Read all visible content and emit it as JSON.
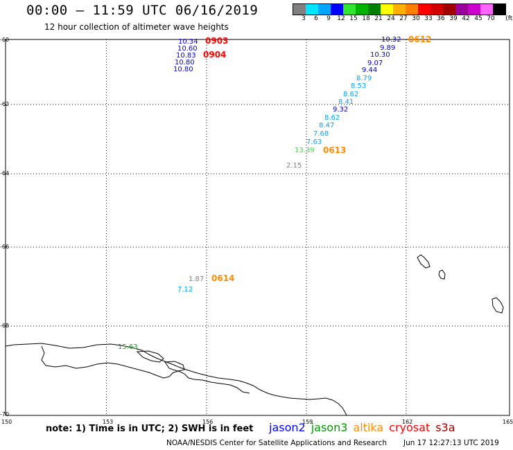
{
  "header": {
    "title": "00:00 – 11:59 UTC 06/16/2019",
    "subtitle": "12 hour collection of altimeter wave heights"
  },
  "legend": {
    "colors": [
      "#808080",
      "#00e5ff",
      "#00a6ff",
      "#0000ff",
      "#33e533",
      "#00b200",
      "#008000",
      "#ffff00",
      "#ffb000",
      "#ff7f00",
      "#ff0000",
      "#d20000",
      "#a00000",
      "#990099",
      "#cc00cc",
      "#ff66ff",
      "#000000"
    ],
    "labels": [
      "3",
      "6",
      "9",
      "12",
      "15",
      "18",
      "21",
      "24",
      "27",
      "30",
      "33",
      "36",
      "39",
      "42",
      "45",
      "70",
      "(ft)"
    ]
  },
  "axes": {
    "x_labels": [
      "150",
      "153",
      "156",
      "159",
      "162",
      "165"
    ],
    "y_labels": [
      "-60",
      "-62",
      "-64",
      "-66",
      "-68",
      "-70"
    ]
  },
  "passes": [
    {
      "label": "0903",
      "color": "#ff0000"
    },
    {
      "label": "0904",
      "color": "#ff0000"
    },
    {
      "label": "0612",
      "color": "#ff8c00"
    },
    {
      "label": "0613",
      "color": "#ff8c00"
    },
    {
      "label": "0614",
      "color": "#ff8c00"
    }
  ],
  "observations": [
    {
      "value": "10.34",
      "color": "#0000cc"
    },
    {
      "value": "10.60",
      "color": "#0000cc"
    },
    {
      "value": "10.83",
      "color": "#0000cc"
    },
    {
      "value": "10.80",
      "color": "#0000cc"
    },
    {
      "value": "10.80",
      "color": "#0000cc"
    },
    {
      "value": "10.32",
      "color": "#0000cc"
    },
    {
      "value": "9.89",
      "color": "#0000cc"
    },
    {
      "value": "10.30",
      "color": "#0000cc"
    },
    {
      "value": "9.07",
      "color": "#0000cc"
    },
    {
      "value": "9.44",
      "color": "#0000cc"
    },
    {
      "value": "8.79",
      "color": "#00a6ff"
    },
    {
      "value": "8.53",
      "color": "#00a6ff"
    },
    {
      "value": "8.62",
      "color": "#00a6ff"
    },
    {
      "value": "8.41",
      "color": "#00a6ff"
    },
    {
      "value": "9.32",
      "color": "#0000cc"
    },
    {
      "value": "8.62",
      "color": "#00a6ff"
    },
    {
      "value": "8.47",
      "color": "#00a6ff"
    },
    {
      "value": "7.68",
      "color": "#00a6ff"
    },
    {
      "value": "7.63",
      "color": "#00a6ff"
    },
    {
      "value": "13.39",
      "color": "#33e533"
    },
    {
      "value": "2.15",
      "color": "#808080"
    },
    {
      "value": "1.87",
      "color": "#808080"
    },
    {
      "value": "7.12",
      "color": "#00a6ff"
    },
    {
      "value": "15.63",
      "color": "#00b200"
    }
  ],
  "footer": {
    "note": "note: 1) Time is in UTC; 2) SWH is in feet",
    "missions": [
      {
        "name": "jason2",
        "color": "#0000ff"
      },
      {
        "name": "jason3",
        "color": "#009900"
      },
      {
        "name": "altika",
        "color": "#ff8c00"
      },
      {
        "name": "cryosat",
        "color": "#ff0000"
      },
      {
        "name": "s3a",
        "color": "#a00000"
      }
    ],
    "credit": "NOAA/NESDIS Center for Satellite Applications and Research",
    "timestamp": "Jun 17 12:27:13 UTC 2019"
  }
}
